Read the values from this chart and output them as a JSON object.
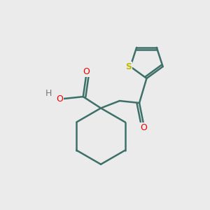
{
  "background_color": "#ebebeb",
  "bond_color": "#3d7068",
  "bond_width": 1.8,
  "atom_colors": {
    "O": "#ee0000",
    "S": "#bbbb00",
    "H": "#777777",
    "C": "#3d7068"
  },
  "fig_size": [
    3.0,
    3.0
  ],
  "dpi": 100
}
